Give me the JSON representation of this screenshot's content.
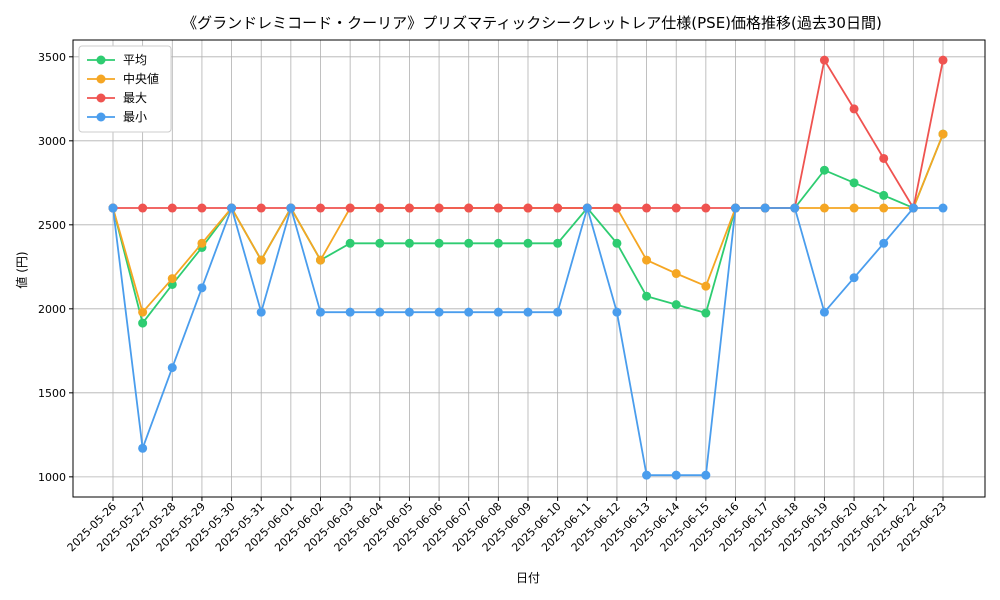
{
  "chart_data": {
    "type": "line",
    "title": "《グランドレミコード・クーリア》プリズマティックシークレットレア仕様(PSE)価格推移(過去30日間)",
    "xlabel": "日付",
    "ylabel": "値 (円)",
    "ylim": [
      880,
      3600
    ],
    "yticks": [
      1000,
      1500,
      2000,
      2500,
      3000,
      3500
    ],
    "grid": true,
    "legend_position": "top-left",
    "categories": [
      "2025-05-26",
      "2025-05-27",
      "2025-05-28",
      "2025-05-29",
      "2025-05-30",
      "2025-05-31",
      "2025-06-01",
      "2025-06-02",
      "2025-06-03",
      "2025-06-04",
      "2025-06-05",
      "2025-06-06",
      "2025-06-07",
      "2025-06-08",
      "2025-06-09",
      "2025-06-10",
      "2025-06-11",
      "2025-06-12",
      "2025-06-13",
      "2025-06-14",
      "2025-06-15",
      "2025-06-16",
      "2025-06-17",
      "2025-06-18",
      "2025-06-19",
      "2025-06-20",
      "2025-06-21",
      "2025-06-22",
      "2025-06-23"
    ],
    "series": [
      {
        "name": "平均",
        "color": "#2ecc71",
        "values": [
          2600,
          1915,
          2145,
          2365,
          2600,
          2290,
          2600,
          2290,
          2390,
          2390,
          2390,
          2390,
          2390,
          2390,
          2390,
          2390,
          2600,
          2390,
          2075,
          2025,
          1975,
          2600,
          2600,
          2600,
          2825,
          2750,
          2675,
          2600,
          3040
        ]
      },
      {
        "name": "中央値",
        "color": "#f5a623",
        "values": [
          2600,
          1980,
          2180,
          2390,
          2600,
          2290,
          2600,
          2290,
          2600,
          2600,
          2600,
          2600,
          2600,
          2600,
          2600,
          2600,
          2600,
          2600,
          2290,
          2210,
          2135,
          2600,
          2600,
          2600,
          2600,
          2600,
          2600,
          2600,
          3040
        ]
      },
      {
        "name": "最大",
        "color": "#ef5350",
        "values": [
          2600,
          2600,
          2600,
          2600,
          2600,
          2600,
          2600,
          2600,
          2600,
          2600,
          2600,
          2600,
          2600,
          2600,
          2600,
          2600,
          2600,
          2600,
          2600,
          2600,
          2600,
          2600,
          2600,
          2600,
          3480,
          3190,
          2895,
          2600,
          3480
        ]
      },
      {
        "name": "最小",
        "color": "#4a9ded",
        "values": [
          2600,
          1170,
          1650,
          2125,
          2600,
          1980,
          2600,
          1980,
          1980,
          1980,
          1980,
          1980,
          1980,
          1980,
          1980,
          1980,
          2600,
          1980,
          1010,
          1010,
          1010,
          2600,
          2600,
          2600,
          1980,
          2185,
          2390,
          2600,
          2600
        ]
      }
    ]
  }
}
